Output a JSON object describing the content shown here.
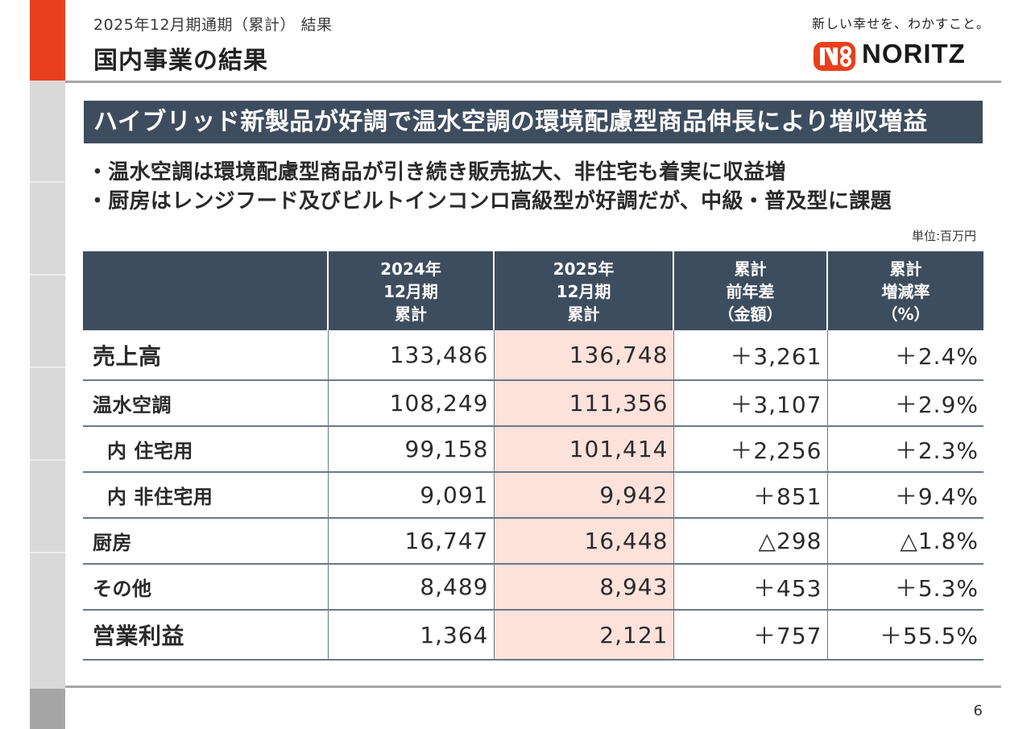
{
  "header": {
    "subtitle": "2025年12月期通期（累計） 結果",
    "title": "国内事業の結果"
  },
  "logo": {
    "tagline": "新しい幸せを、わかすこと。",
    "brand": "NORITZ"
  },
  "headline": "ハイブリッド新製品が好調で温水空調の環境配慮型商品伸長により増収増益",
  "bullets": [
    "・温水空調は環境配慮型商品が引き続き販売拡大、非住宅も着実に収益増",
    "・厨房はレンジフード及びビルトインコンロ高級型が好調だが、中級・普及型に課題"
  ],
  "unit_label": "単位:百万円",
  "table": {
    "headers": [
      "",
      "2024年\n12月期\n累計",
      "2025年\n12月期\n累計",
      "累計\n前年差\n（金額）",
      "累計\n増減率\n（%）"
    ],
    "rows": [
      {
        "label": "売上高",
        "v2024": "133,486",
        "v2025": "136,748",
        "diff": "＋3,261",
        "rate": "＋2.4%"
      },
      {
        "label": "温水空調",
        "v2024": "108,249",
        "v2025": "111,356",
        "diff": "＋3,107",
        "rate": "＋2.9%"
      },
      {
        "label": "内 住宅用",
        "v2024": "99,158",
        "v2025": "101,414",
        "diff": "＋2,256",
        "rate": "＋2.3%"
      },
      {
        "label": "内 非住宅用",
        "v2024": "9,091",
        "v2025": "9,942",
        "diff": "＋851",
        "rate": "＋9.4%"
      },
      {
        "label": "厨房",
        "v2024": "16,747",
        "v2025": "16,448",
        "diff": "△298",
        "rate": "△1.8%"
      },
      {
        "label": "その他",
        "v2024": "8,489",
        "v2025": "8,943",
        "diff": "＋453",
        "rate": "＋5.3%"
      },
      {
        "label": "営業利益",
        "v2024": "1,364",
        "v2025": "2,121",
        "diff": "＋757",
        "rate": "＋55.5%"
      }
    ]
  },
  "page_number": "6",
  "colors": {
    "accent_red": "#e8401c",
    "header_navy": "#3e4d5e",
    "highlight_pink": "#fde2dc"
  }
}
